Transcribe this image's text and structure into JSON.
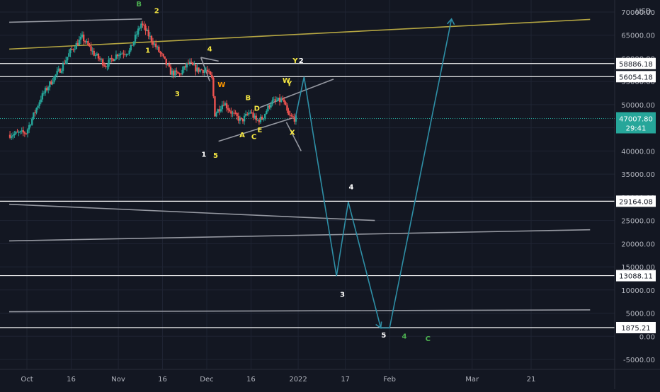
{
  "chart_data": {
    "type": "candlestick-with-drawings",
    "currency_label": "USD",
    "y_axis": {
      "min": -5000,
      "max": 70000,
      "ticks": [
        {
          "value": 70000,
          "label": "70000.00"
        },
        {
          "value": 65000,
          "label": "65000.00"
        },
        {
          "value": 60000,
          "label": "60000.00"
        },
        {
          "value": 55000,
          "label": "55000.00"
        },
        {
          "value": 50000,
          "label": "50000.00"
        },
        {
          "value": 45000,
          "label": "45000.00"
        },
        {
          "value": 40000,
          "label": "40000.00"
        },
        {
          "value": 35000,
          "label": "35000.00"
        },
        {
          "value": 30000,
          "label": "30000.00"
        },
        {
          "value": 25000,
          "label": "25000.00"
        },
        {
          "value": 20000,
          "label": "20000.00"
        },
        {
          "value": 15000,
          "label": "15000.00"
        },
        {
          "value": 10000,
          "label": "10000.00"
        },
        {
          "value": 5000,
          "label": "5000.00"
        },
        {
          "value": 0,
          "label": "0.00"
        },
        {
          "value": -5000,
          "label": "-5000.00"
        }
      ]
    },
    "x_axis": {
      "ticks": [
        {
          "date": "2021-10-01",
          "label": "Oct"
        },
        {
          "date": "2021-10-16",
          "label": "16"
        },
        {
          "date": "2021-11-01",
          "label": "Nov"
        },
        {
          "date": "2021-11-16",
          "label": "16"
        },
        {
          "date": "2021-12-01",
          "label": "Dec"
        },
        {
          "date": "2021-12-16",
          "label": "16"
        },
        {
          "date": "2022-01-01",
          "label": "2022"
        },
        {
          "date": "2022-01-17",
          "label": "17"
        },
        {
          "date": "2022-02-01",
          "label": "Feb"
        },
        {
          "date": "2022-03-01",
          "label": "Mar"
        },
        {
          "date": "2022-03-21",
          "label": "21"
        }
      ]
    },
    "current_price": {
      "value": 47007.8,
      "label": "47007.80",
      "countdown": "29:41"
    },
    "horizontal_levels": [
      {
        "value": 58886.18,
        "label": "58886.18"
      },
      {
        "value": 56054.18,
        "label": "56054.18"
      },
      {
        "value": 29164.08,
        "label": "29164.08"
      },
      {
        "value": 13088.11,
        "label": "13088.11"
      },
      {
        "value": 1875.21,
        "label": "1875.21"
      }
    ],
    "price_path": [
      {
        "date": "2021-09-25",
        "price": 43500
      },
      {
        "date": "2021-10-01",
        "price": 44000
      },
      {
        "date": "2021-10-06",
        "price": 51500
      },
      {
        "date": "2021-10-10",
        "price": 55500
      },
      {
        "date": "2021-10-13",
        "price": 58000
      },
      {
        "date": "2021-10-16",
        "price": 61500
      },
      {
        "date": "2021-10-20",
        "price": 64500
      },
      {
        "date": "2021-10-24",
        "price": 61000
      },
      {
        "date": "2021-10-28",
        "price": 58500
      },
      {
        "date": "2021-11-01",
        "price": 61000
      },
      {
        "date": "2021-11-05",
        "price": 61500
      },
      {
        "date": "2021-11-09",
        "price": 67500
      },
      {
        "date": "2021-11-12",
        "price": 64500
      },
      {
        "date": "2021-11-16",
        "price": 60500
      },
      {
        "date": "2021-11-19",
        "price": 57000
      },
      {
        "date": "2021-11-22",
        "price": 56500
      },
      {
        "date": "2021-11-25",
        "price": 59000
      },
      {
        "date": "2021-11-28",
        "price": 57500
      },
      {
        "date": "2021-12-01",
        "price": 57500
      },
      {
        "date": "2021-12-03",
        "price": 55500
      },
      {
        "date": "2021-12-04",
        "price": 48000
      },
      {
        "date": "2021-12-07",
        "price": 50500
      },
      {
        "date": "2021-12-10",
        "price": 48000
      },
      {
        "date": "2021-12-13",
        "price": 46500
      },
      {
        "date": "2021-12-16",
        "price": 48500
      },
      {
        "date": "2021-12-18",
        "price": 46500
      },
      {
        "date": "2021-12-20",
        "price": 47000
      },
      {
        "date": "2021-12-23",
        "price": 50500
      },
      {
        "date": "2021-12-27",
        "price": 51000
      },
      {
        "date": "2021-12-29",
        "price": 47500
      },
      {
        "date": "2021-12-31",
        "price": 47007.8
      }
    ],
    "projection_path": [
      {
        "date": "2021-12-31",
        "price": 47000
      },
      {
        "date": "2022-01-03",
        "price": 56000
      },
      {
        "date": "2022-01-06",
        "price": 44000
      },
      {
        "date": "2022-01-14",
        "price": 13000
      },
      {
        "date": "2022-01-18",
        "price": 29000
      },
      {
        "date": "2022-01-29",
        "price": 1800
      },
      {
        "date": "2022-02-01",
        "price": 1800
      },
      {
        "date": "2022-02-22",
        "price": 68500
      }
    ],
    "trendlines": [
      {
        "color": "#9598a1",
        "from": {
          "date": "2021-09-25",
          "price": 67800
        },
        "to": {
          "date": "2021-11-09",
          "price": 68500
        }
      },
      {
        "color": "#b5a642",
        "from": {
          "date": "2021-09-25",
          "price": 62000
        },
        "to": {
          "date": "2022-04-10",
          "price": 68400
        }
      },
      {
        "color": "#9598a1",
        "from": {
          "date": "2021-11-29",
          "price": 60200
        },
        "to": {
          "date": "2021-12-05",
          "price": 59400
        }
      },
      {
        "color": "#9598a1",
        "from": {
          "date": "2021-11-29",
          "price": 60200
        },
        "to": {
          "date": "2021-12-02",
          "price": 55100
        }
      },
      {
        "color": "#9598a1",
        "from": {
          "date": "2021-12-05",
          "price": 42100
        },
        "to": {
          "date": "2021-12-30",
          "price": 47100
        }
      },
      {
        "color": "#9598a1",
        "from": {
          "date": "2021-12-19",
          "price": 49400
        },
        "to": {
          "date": "2022-01-13",
          "price": 55500
        }
      },
      {
        "color": "#9598a1",
        "from": {
          "date": "2021-12-28",
          "price": 46200
        },
        "to": {
          "date": "2022-01-02",
          "price": 40000
        }
      },
      {
        "color": "#9598a1",
        "from": {
          "date": "2021-09-25",
          "price": 28500
        },
        "to": {
          "date": "2022-01-27",
          "price": 25000
        }
      },
      {
        "color": "#9598a1",
        "from": {
          "date": "2021-09-25",
          "price": 20600
        },
        "to": {
          "date": "2022-04-10",
          "price": 23000
        }
      },
      {
        "color": "#9598a1",
        "from": {
          "date": "2021-09-25",
          "price": 5300
        },
        "to": {
          "date": "2022-04-10",
          "price": 5700
        }
      }
    ],
    "wave_labels": [
      {
        "text": "B",
        "color": "#4caf50",
        "date": "2021-11-08",
        "price": 71200
      },
      {
        "text": "2",
        "color": "#f5e642",
        "date": "2021-11-14",
        "price": 69800
      },
      {
        "text": "1",
        "color": "#f5e642",
        "date": "2021-11-11",
        "price": 61200
      },
      {
        "text": "3",
        "color": "#f5e642",
        "date": "2021-11-21",
        "price": 51800
      },
      {
        "text": "4",
        "color": "#f5e642",
        "date": "2021-12-02",
        "price": 61500
      },
      {
        "text": "W",
        "color": "#ff9800",
        "date": "2021-12-06",
        "price": 53800
      },
      {
        "text": "B",
        "color": "#f5e642",
        "date": "2021-12-15",
        "price": 51000
      },
      {
        "text": "D",
        "color": "#f5e642",
        "date": "2021-12-18",
        "price": 48700
      },
      {
        "text": "A",
        "color": "#f5e642",
        "date": "2021-12-13",
        "price": 43000
      },
      {
        "text": "E",
        "color": "#f5e642",
        "date": "2021-12-19",
        "price": 44000
      },
      {
        "text": "C",
        "color": "#f5e642",
        "date": "2021-12-17",
        "price": 42600
      },
      {
        "text": "W",
        "color": "#f5e642",
        "date": "2021-12-28",
        "price": 54700
      },
      {
        "text": "Y",
        "color": "#f5e642",
        "date": "2021-12-29",
        "price": 54000
      },
      {
        "text": "Y",
        "color": "#f5e642",
        "date": "2021-12-31",
        "price": 59000
      },
      {
        "text": "2",
        "color": "#ffffff",
        "date": "2022-01-02",
        "price": 59000
      },
      {
        "text": "X",
        "color": "#f5e642",
        "date": "2021-12-30",
        "price": 43500
      },
      {
        "text": "1",
        "color": "#ffffff",
        "date": "2021-11-30",
        "price": 38800
      },
      {
        "text": "5",
        "color": "#f5e642",
        "date": "2021-12-04",
        "price": 38500
      },
      {
        "text": "4",
        "color": "#ffffff",
        "date": "2022-01-19",
        "price": 31700
      },
      {
        "text": "3",
        "color": "#ffffff",
        "date": "2022-01-16",
        "price": 8500
      },
      {
        "text": "5",
        "color": "#ffffff",
        "date": "2022-01-30",
        "price": -300
      },
      {
        "text": "4",
        "color": "#4caf50",
        "date": "2022-02-06",
        "price": -500
      },
      {
        "text": "C",
        "color": "#4caf50",
        "date": "2022-02-14",
        "price": -1000
      }
    ]
  }
}
